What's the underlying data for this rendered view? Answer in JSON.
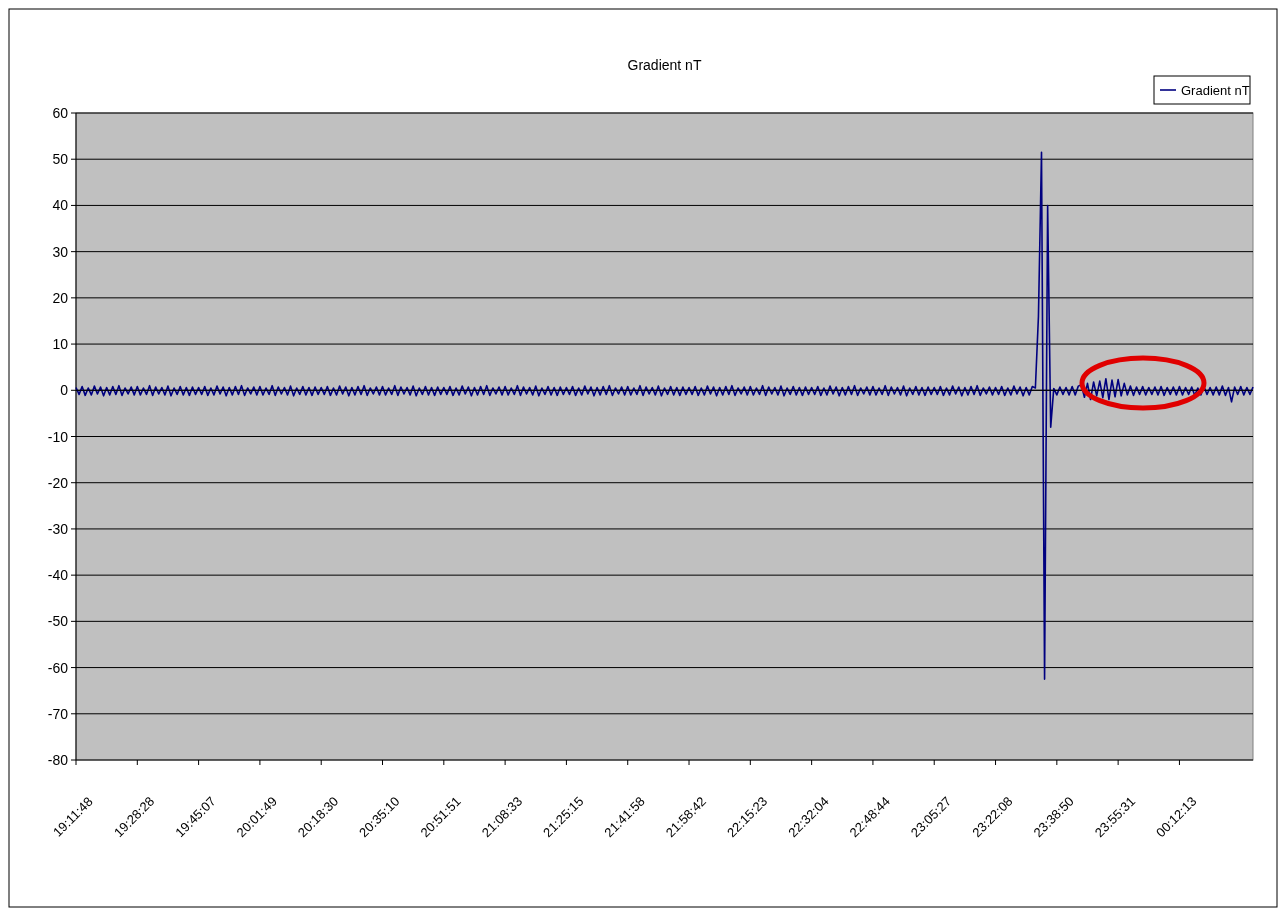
{
  "chart_data": {
    "type": "line",
    "title": "Gradient nT",
    "legend": "top right",
    "grid": "y",
    "ylim": [
      -80,
      60
    ],
    "yticks": [
      -80,
      -70,
      -60,
      -50,
      -40,
      -30,
      -20,
      -10,
      0,
      10,
      20,
      30,
      40,
      50,
      60
    ],
    "categories": [
      "19:11:48",
      null,
      null,
      null,
      null,
      null,
      null,
      null,
      null,
      null,
      null,
      null,
      null,
      null,
      null,
      null,
      null,
      null,
      null,
      null,
      "19:28:28",
      null,
      null,
      null,
      null,
      null,
      null,
      null,
      null,
      null,
      null,
      null,
      null,
      null,
      null,
      null,
      null,
      null,
      null,
      null,
      "19:45:07",
      null,
      null,
      null,
      null,
      null,
      null,
      null,
      null,
      null,
      null,
      null,
      null,
      null,
      null,
      null,
      null,
      null,
      null,
      null,
      "20:01:49",
      null,
      null,
      null,
      null,
      null,
      null,
      null,
      null,
      null,
      null,
      null,
      null,
      null,
      null,
      null,
      null,
      null,
      null,
      null,
      "20:18:30",
      null,
      null,
      null,
      null,
      null,
      null,
      null,
      null,
      null,
      null,
      null,
      null,
      null,
      null,
      null,
      null,
      null,
      null,
      null,
      "20:35:10",
      null,
      null,
      null,
      null,
      null,
      null,
      null,
      null,
      null,
      null,
      null,
      null,
      null,
      null,
      null,
      null,
      null,
      null,
      null,
      "20:51:51",
      null,
      null,
      null,
      null,
      null,
      null,
      null,
      null,
      null,
      null,
      null,
      null,
      null,
      null,
      null,
      null,
      null,
      null,
      null,
      "21:08:33",
      null,
      null,
      null,
      null,
      null,
      null,
      null,
      null,
      null,
      null,
      null,
      null,
      null,
      null,
      null,
      null,
      null,
      null,
      null,
      "21:25:15",
      null,
      null,
      null,
      null,
      null,
      null,
      null,
      null,
      null,
      null,
      null,
      null,
      null,
      null,
      null,
      null,
      null,
      null,
      null,
      "21:41:58",
      null,
      null,
      null,
      null,
      null,
      null,
      null,
      null,
      null,
      null,
      null,
      null,
      null,
      null,
      null,
      null,
      null,
      null,
      null,
      "21:58:42",
      null,
      null,
      null,
      null,
      null,
      null,
      null,
      null,
      null,
      null,
      null,
      null,
      null,
      null,
      null,
      null,
      null,
      null,
      null,
      "22:15:23",
      null,
      null,
      null,
      null,
      null,
      null,
      null,
      null,
      null,
      null,
      null,
      null,
      null,
      null,
      null,
      null,
      null,
      null,
      null,
      "22:32:04",
      null,
      null,
      null,
      null,
      null,
      null,
      null,
      null,
      null,
      null,
      null,
      null,
      null,
      null,
      null,
      null,
      null,
      null,
      null,
      "22:48:44",
      null,
      null,
      null,
      null,
      null,
      null,
      null,
      null,
      null,
      null,
      null,
      null,
      null,
      null,
      null,
      null,
      null,
      null,
      null,
      "23:05:27",
      null,
      null,
      null,
      null,
      null,
      null,
      null,
      null,
      null,
      null,
      null,
      null,
      null,
      null,
      null,
      null,
      null,
      null,
      null,
      "23:22:08",
      null,
      null,
      null,
      null,
      null,
      null,
      null,
      null,
      null,
      null,
      null,
      null,
      null,
      null,
      null,
      null,
      null,
      null,
      null,
      "23:38:50",
      null,
      null,
      null,
      null,
      null,
      null,
      null,
      null,
      null,
      null,
      null,
      null,
      null,
      null,
      null,
      null,
      null,
      null,
      null,
      "23:55:31",
      null,
      null,
      null,
      null,
      null,
      null,
      null,
      null,
      null,
      null,
      null,
      null,
      null,
      null,
      null,
      null,
      null,
      null,
      null,
      "00:12:13",
      null,
      null,
      null,
      null,
      null,
      null,
      null,
      null,
      null,
      null,
      null,
      null,
      null,
      null,
      null,
      null,
      null,
      null,
      null,
      null,
      null,
      null,
      null,
      null
    ],
    "series": [
      {
        "name": "Gradient nT",
        "color": "#000080",
        "values": [
          0.6,
          -0.9,
          0.8,
          -1.1,
          0.5,
          -1,
          0.9,
          -0.8,
          0.7,
          -1.2,
          0.6,
          -1,
          0.8,
          -0.9,
          1,
          -1.1,
          0.5,
          -0.8,
          0.7,
          -1,
          0.8,
          -1,
          0.5,
          -0.9,
          1,
          -1.1,
          0.7,
          -0.8,
          0.6,
          -1,
          0.9,
          -1.2,
          0.5,
          -0.9,
          0.8,
          -1,
          0.6,
          -1.1,
          0.7,
          -0.9,
          0.6,
          -0.9,
          0.8,
          -1.1,
          0.5,
          -1,
          0.9,
          -0.8,
          0.7,
          -1.2,
          0.6,
          -1,
          0.8,
          -0.9,
          1,
          -1.1,
          0.5,
          -0.8,
          0.7,
          -1,
          0.8,
          -1,
          0.5,
          -0.9,
          1,
          -1.1,
          0.7,
          -0.8,
          0.6,
          -1,
          0.9,
          -1.2,
          0.5,
          -0.9,
          0.8,
          -1,
          0.6,
          -1.1,
          0.7,
          -0.9,
          0.6,
          -0.9,
          0.8,
          -1.1,
          0.5,
          -1,
          0.9,
          -0.8,
          0.7,
          -1.2,
          0.6,
          -1,
          0.8,
          -0.9,
          1,
          -1.1,
          0.5,
          -0.8,
          0.7,
          -1,
          0.8,
          -1,
          0.5,
          -0.9,
          1,
          -1.1,
          0.7,
          -0.8,
          0.6,
          -1,
          0.9,
          -1.2,
          0.5,
          -0.9,
          0.8,
          -1,
          0.6,
          -1.1,
          0.7,
          -0.9,
          0.6,
          -0.9,
          0.8,
          -1.1,
          0.5,
          -1,
          0.9,
          -0.8,
          0.7,
          -1.2,
          0.6,
          -1,
          0.8,
          -0.9,
          1,
          -1.1,
          0.5,
          -0.8,
          0.7,
          -1,
          0.8,
          -1,
          0.5,
          -0.9,
          1,
          -1.1,
          0.7,
          -0.8,
          0.6,
          -1,
          0.9,
          -1.2,
          0.5,
          -0.9,
          0.8,
          -1,
          0.6,
          -1.1,
          0.7,
          -0.9,
          0.6,
          -0.9,
          0.8,
          -1.1,
          0.5,
          -1,
          0.9,
          -0.8,
          0.7,
          -1.2,
          0.6,
          -1,
          0.8,
          -0.9,
          1,
          -1.1,
          0.5,
          -0.8,
          0.7,
          -1,
          0.8,
          -1,
          0.5,
          -0.9,
          1,
          -1.1,
          0.7,
          -0.8,
          0.6,
          -1,
          0.9,
          -1.2,
          0.5,
          -0.9,
          0.8,
          -1,
          0.6,
          -1.1,
          0.7,
          -0.9,
          0.6,
          -0.9,
          0.8,
          -1.1,
          0.5,
          -1,
          0.9,
          -0.8,
          0.7,
          -1.2,
          0.6,
          -1,
          0.8,
          -0.9,
          1,
          -1.1,
          0.5,
          -0.8,
          0.7,
          -1,
          0.8,
          -1,
          0.5,
          -0.9,
          1,
          -1.1,
          0.7,
          -0.8,
          0.6,
          -1,
          0.9,
          -1.2,
          0.5,
          -0.9,
          0.8,
          -1,
          0.6,
          -1.1,
          0.7,
          -0.9,
          0.6,
          -0.9,
          0.8,
          -1.1,
          0.5,
          -1,
          0.9,
          -0.8,
          0.7,
          -1.2,
          0.6,
          -1,
          0.8,
          -0.9,
          1,
          -1.1,
          0.5,
          -0.8,
          0.7,
          -1,
          0.8,
          -1,
          0.5,
          -0.9,
          1,
          -1.1,
          0.7,
          -0.8,
          0.6,
          -1,
          0.9,
          -1.2,
          0.5,
          -0.9,
          0.8,
          -1,
          0.6,
          -1.1,
          0.7,
          -0.9,
          0.6,
          -0.9,
          0.8,
          -1.1,
          0.5,
          -1,
          0.9,
          -0.8,
          0.7,
          -1.2,
          0.6,
          -1,
          0.8,
          -0.9,
          1,
          -1.1,
          0.5,
          -0.8,
          0.7,
          -1,
          0.6,
          -0.9,
          0.8,
          -1.1,
          0.5,
          -1,
          0.9,
          -0.8,
          0.7,
          -1.2,
          0.6,
          -1,
          0.8,
          0.5,
          16,
          51.5,
          -62.5,
          40,
          -8,
          0.4,
          -1,
          0.7,
          -0.9,
          0.6,
          -1,
          0.8,
          -1,
          0.9,
          1.2,
          -1.5,
          1.5,
          -2,
          1.8,
          -1.2,
          2,
          -1.6,
          2.5,
          -2,
          2.2,
          -1.4,
          2.3,
          -1.2,
          1.5,
          -1,
          0.9,
          -1.1,
          0.7,
          -0.9,
          0.8,
          -1,
          0.6,
          -0.9,
          0.7,
          -1,
          0.8,
          -1.1,
          0.6,
          -0.9,
          0.7,
          -1,
          0.8,
          -1,
          0.6,
          -0.9,
          0.7,
          -1.1,
          0.5,
          -1,
          0.8,
          -0.9,
          0.6,
          -1,
          0.7,
          -1,
          0.9,
          -1.1,
          0.6,
          -2.5,
          0.7,
          -0.9,
          0.8,
          -1,
          0.6,
          -0.9,
          0.7
        ]
      }
    ]
  }
}
